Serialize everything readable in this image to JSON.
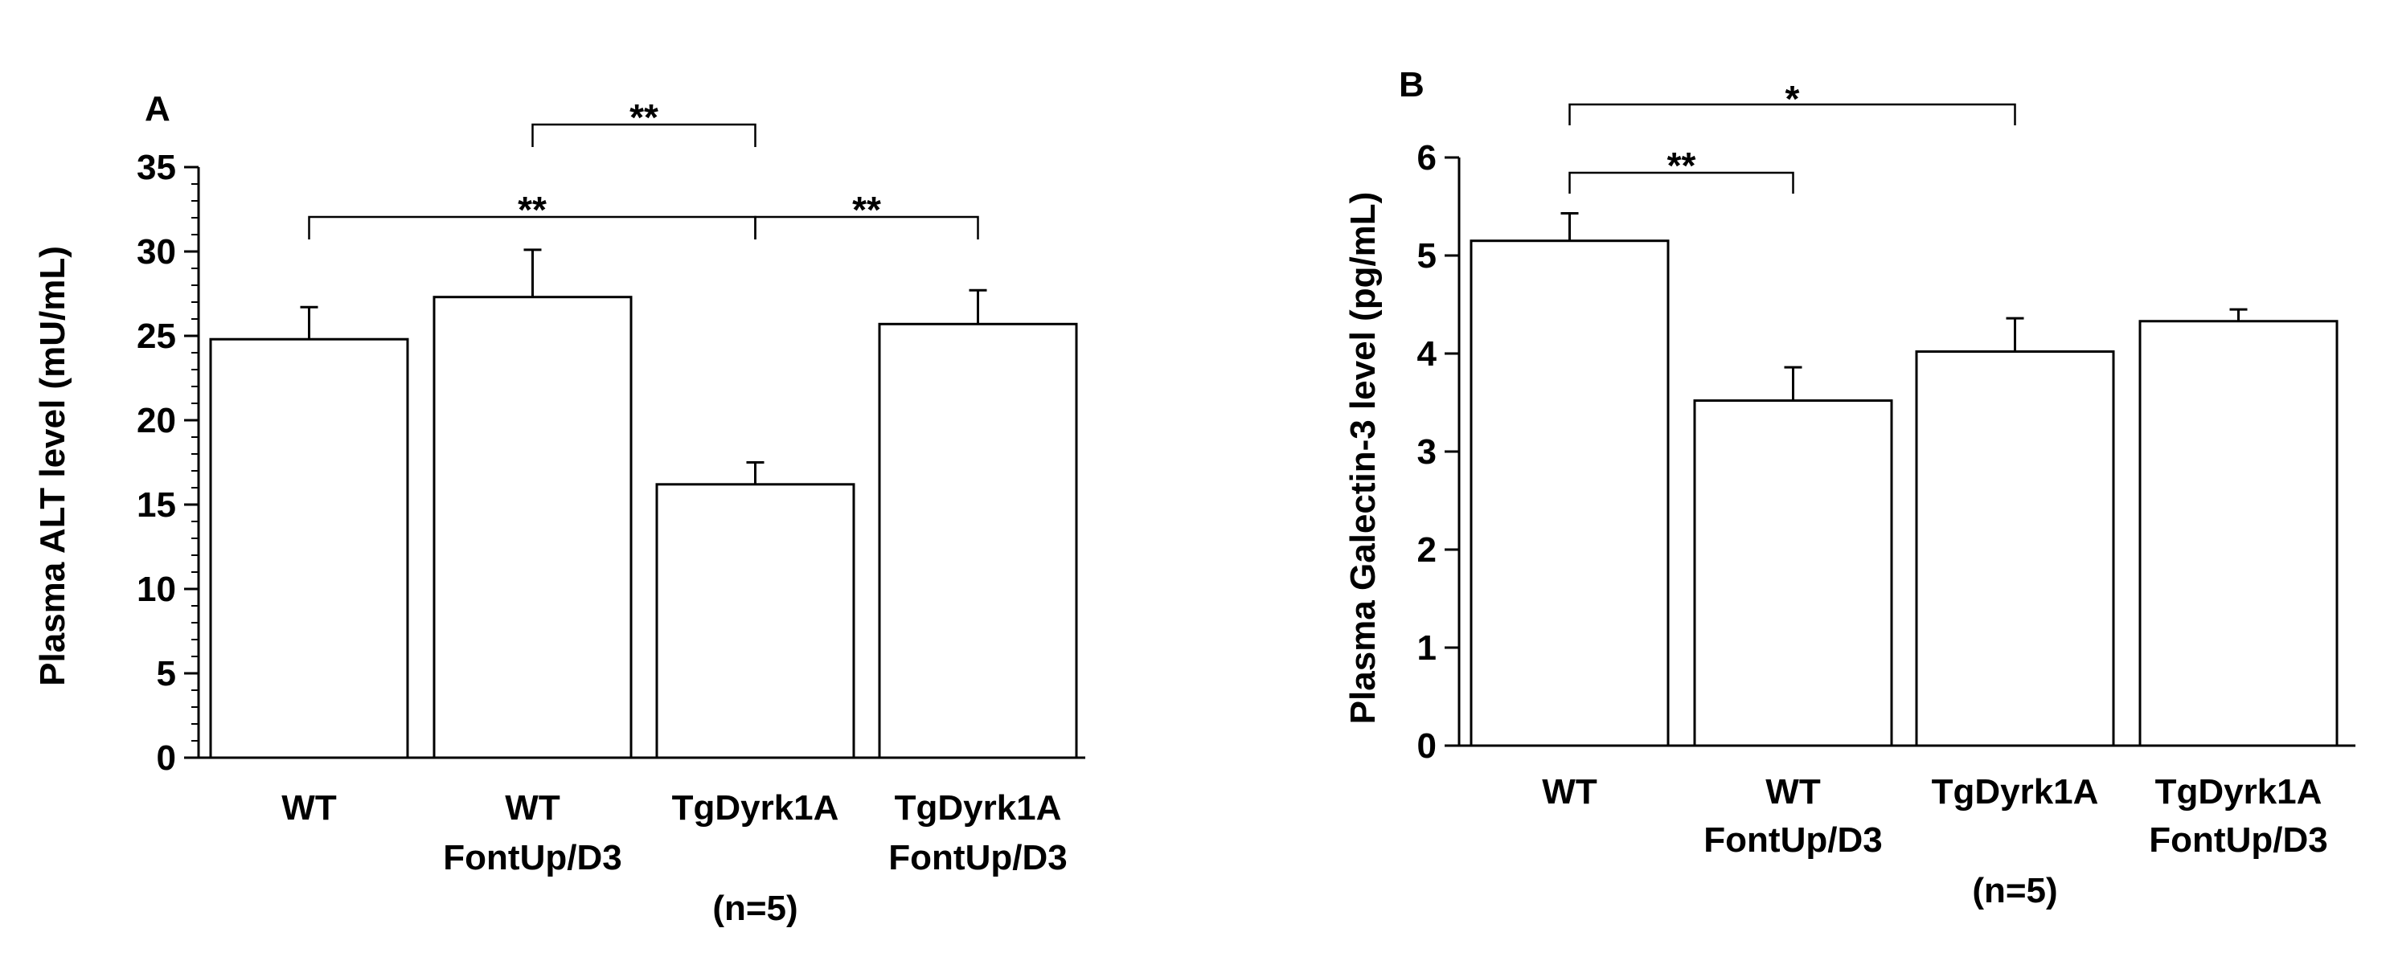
{
  "chart_data": [
    {
      "type": "bar",
      "panel": "A",
      "ylabel": "Plasma ALT level (mU/mL)",
      "ylim": [
        0,
        35
      ],
      "yticks": [
        0,
        5,
        10,
        15,
        20,
        25,
        30,
        35
      ],
      "categories": [
        [
          "WT"
        ],
        [
          "WT",
          "FontUp/D3"
        ],
        [
          "TgDyrk1A"
        ],
        [
          "TgDyrk1A",
          "FontUp/D3"
        ]
      ],
      "values": [
        24.8,
        27.3,
        16.2,
        25.7
      ],
      "errors": [
        1.9,
        2.8,
        1.3,
        2.0
      ],
      "n_label": "(n=5)",
      "significance": [
        {
          "from": 1,
          "to": 2,
          "label": "**"
        },
        {
          "from": 0,
          "to": 2,
          "label": "**"
        },
        {
          "from": 2,
          "to": 3,
          "label": "**"
        }
      ],
      "grid": false,
      "color": "#ffffff"
    },
    {
      "type": "bar",
      "panel": "B",
      "ylabel": "Plasma Galectin-3 level (pg/mL)",
      "ylim": [
        0,
        6
      ],
      "yticks": [
        0,
        1,
        2,
        3,
        4,
        5,
        6
      ],
      "categories": [
        [
          "WT"
        ],
        [
          "WT",
          "FontUp/D3"
        ],
        [
          "TgDyrk1A"
        ],
        [
          "TgDyrk1A",
          "FontUp/D3"
        ]
      ],
      "values": [
        5.15,
        3.52,
        4.02,
        4.33
      ],
      "errors": [
        0.28,
        0.34,
        0.34,
        0.12
      ],
      "n_label": "(n=5)",
      "significance": [
        {
          "from": 0,
          "to": 2,
          "label": "*"
        },
        {
          "from": 0,
          "to": 1,
          "label": "**"
        }
      ],
      "grid": false,
      "color": "#ffffff"
    }
  ]
}
